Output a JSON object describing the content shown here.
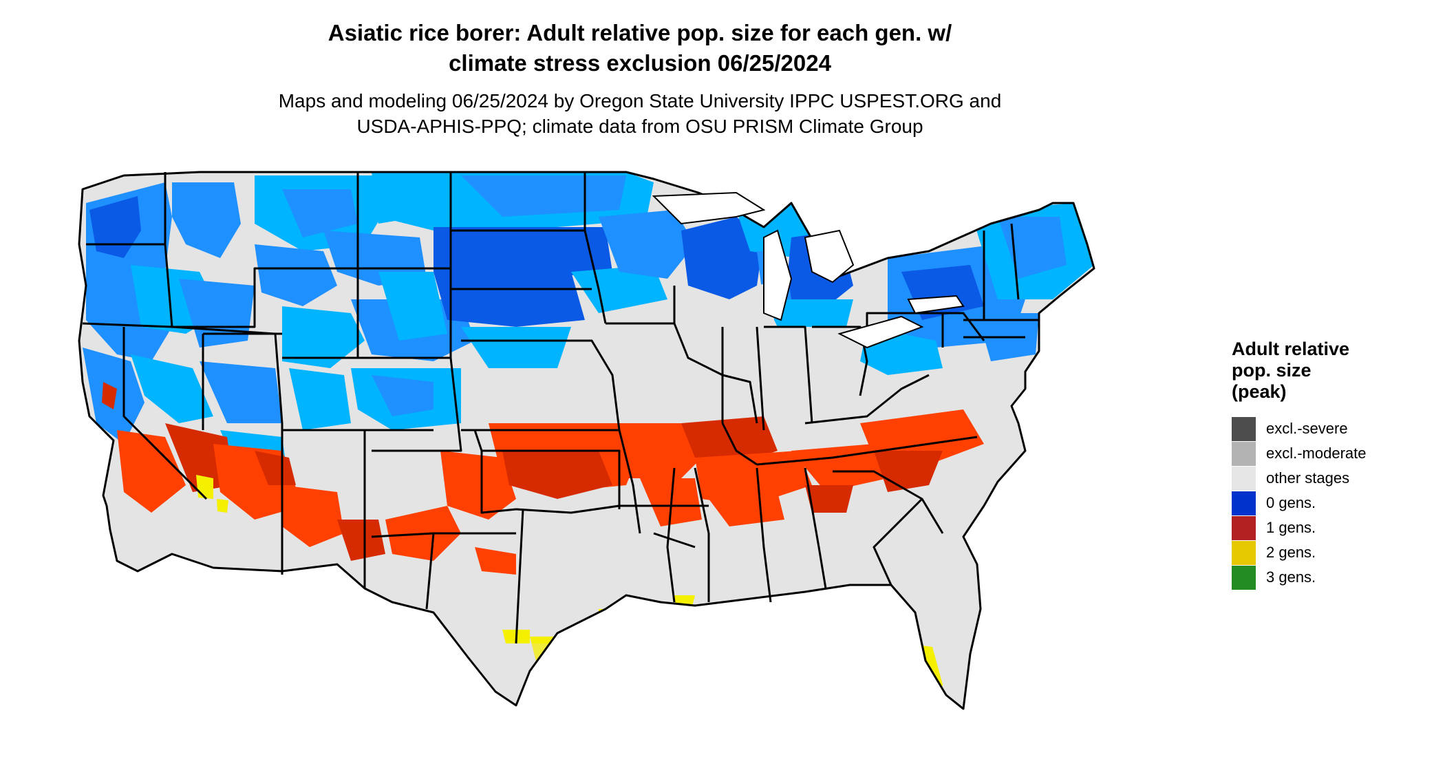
{
  "title": {
    "line1": "Asiatic rice borer: Adult relative pop. size for each gen. w/",
    "line2": "climate stress exclusion 06/25/2024"
  },
  "subtitle": {
    "line1": "Maps and modeling 06/25/2024 by Oregon State University IPPC USPEST.ORG and",
    "line2": "USDA-APHIS-PPQ; climate data from OSU PRISM Climate Group"
  },
  "legend": {
    "title_lines": [
      "Adult relative",
      "pop. size",
      "(peak)"
    ],
    "items": [
      {
        "label": "excl.-severe",
        "color": "#4d4d4d"
      },
      {
        "label": "excl.-moderate",
        "color": "#b3b3b3"
      },
      {
        "label": "other stages",
        "color": "#e6e6e6"
      },
      {
        "label": "0 gens.",
        "color": "#0033cc"
      },
      {
        "label": "1 gens.",
        "color": "#b22222"
      },
      {
        "label": "2 gens.",
        "color": "#e6c800"
      },
      {
        "label": "3 gens.",
        "color": "#228b22"
      }
    ]
  },
  "map_colors": {
    "background_land": "#e4e4e4",
    "light_blue": "#00b4ff",
    "mid_blue": "#1e90ff",
    "dark_blue": "#0a5ae6",
    "orange_red": "#ff4000",
    "dark_red": "#d62a00",
    "yellow": "#f5ef00",
    "green": "#33b233",
    "border": "#000000"
  }
}
